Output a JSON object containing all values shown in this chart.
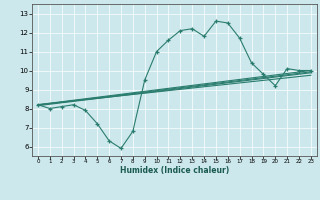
{
  "xlabel": "Humidex (Indice chaleur)",
  "bg_color": "#cde8ec",
  "line_color": "#2a7d6e",
  "xlim": [
    -0.5,
    23.5
  ],
  "ylim": [
    5.5,
    13.5
  ],
  "yticks": [
    6,
    7,
    8,
    9,
    10,
    11,
    12,
    13
  ],
  "xticks": [
    0,
    1,
    2,
    3,
    4,
    5,
    6,
    7,
    8,
    9,
    10,
    11,
    12,
    13,
    14,
    15,
    16,
    17,
    18,
    19,
    20,
    21,
    22,
    23
  ],
  "main_x": [
    0,
    1,
    2,
    3,
    4,
    5,
    6,
    7,
    8,
    9,
    10,
    11,
    12,
    13,
    14,
    15,
    16,
    17,
    18,
    19,
    20,
    21,
    22,
    23
  ],
  "main_y": [
    8.2,
    8.0,
    8.1,
    8.2,
    7.9,
    7.2,
    6.3,
    5.9,
    6.8,
    9.5,
    11.0,
    11.6,
    12.1,
    12.2,
    11.8,
    12.6,
    12.5,
    11.7,
    10.4,
    9.8,
    9.2,
    10.1,
    10.0,
    10.0
  ],
  "line1_x": [
    0,
    23
  ],
  "line1_y": [
    8.2,
    10.0
  ],
  "line2_x": [
    0,
    23
  ],
  "line2_y": [
    8.2,
    9.75
  ],
  "line3_x": [
    0,
    23
  ],
  "line3_y": [
    8.15,
    9.88
  ],
  "line4_x": [
    0,
    23
  ],
  "line4_y": [
    8.18,
    9.93
  ]
}
